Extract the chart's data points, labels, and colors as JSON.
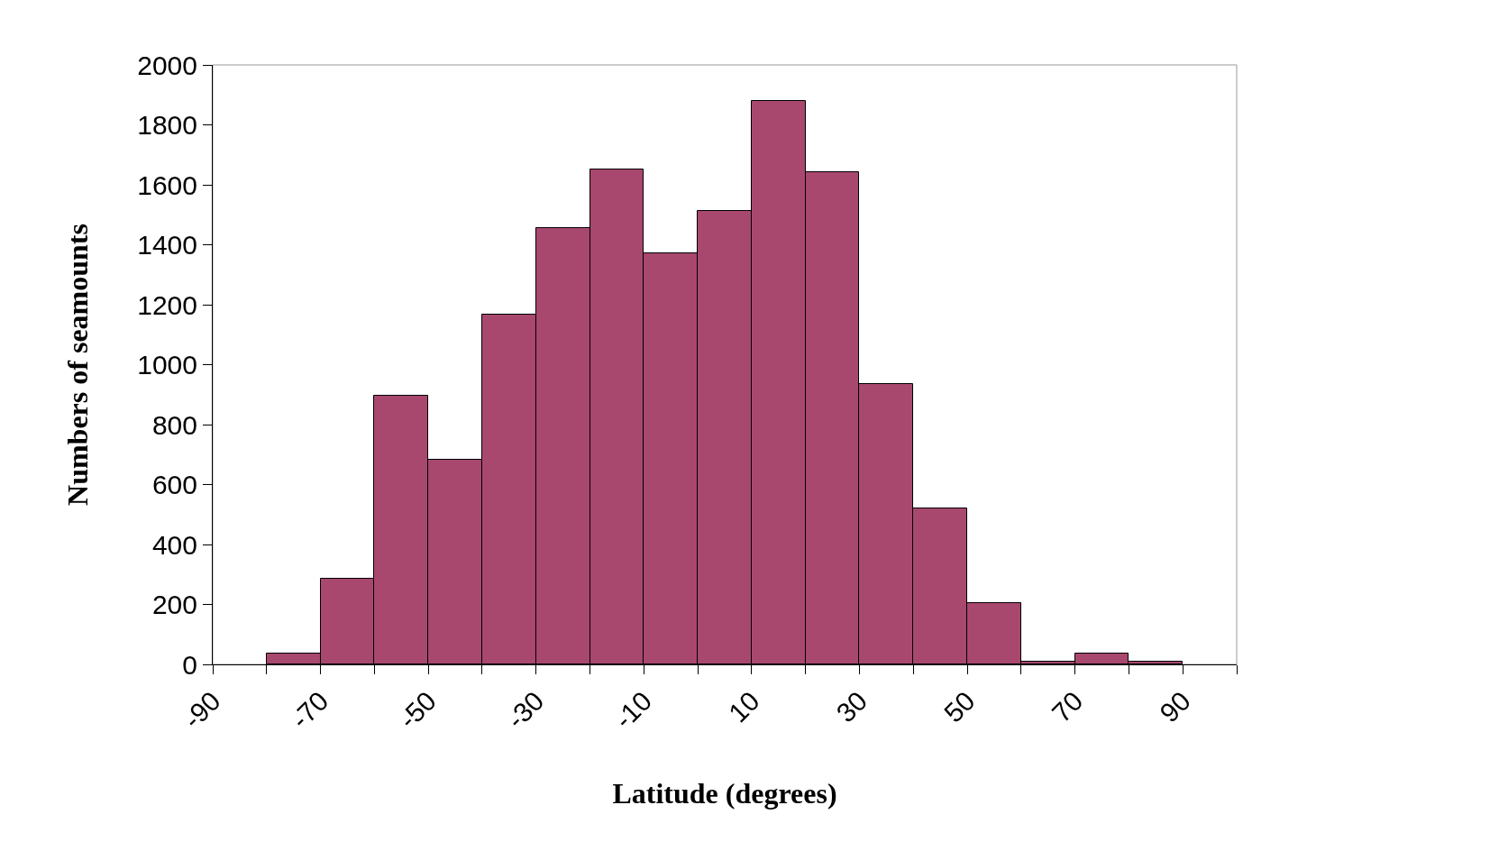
{
  "chart_data": {
    "type": "histogram",
    "xlabel": "Latitude (degrees)",
    "ylabel": "Numbers of seamounts",
    "bins": [
      -80,
      -70,
      -60,
      -50,
      -40,
      -30,
      -20,
      -10,
      0,
      10,
      20,
      30,
      40,
      50,
      60,
      70,
      80,
      90
    ],
    "values": [
      35,
      285,
      897,
      683,
      1167,
      1455,
      1651,
      1372,
      1513,
      1881,
      1641,
      936,
      519,
      205,
      10,
      35,
      10
    ],
    "color": "#a8486f",
    "xlim": [
      -90,
      100
    ],
    "xticks": [
      -90,
      {
        "value": -80,
        "label": null
      },
      -70,
      {
        "value": -60,
        "label": null
      },
      -50,
      {
        "value": -40,
        "label": null
      },
      -30,
      {
        "value": -20,
        "label": null
      },
      -10,
      {
        "value": 0,
        "label": null
      },
      10,
      {
        "value": 20,
        "label": null
      },
      30,
      {
        "value": 40,
        "label": null
      },
      50,
      {
        "value": 60,
        "label": null
      },
      70,
      {
        "value": 80,
        "label": null
      },
      90,
      {
        "value": 100,
        "label": null
      }
    ],
    "ylim": [
      0,
      2000
    ],
    "yticks": [
      0,
      200,
      400,
      600,
      800,
      1000,
      1200,
      1400,
      1600,
      1800,
      2000
    ],
    "grid": false
  }
}
